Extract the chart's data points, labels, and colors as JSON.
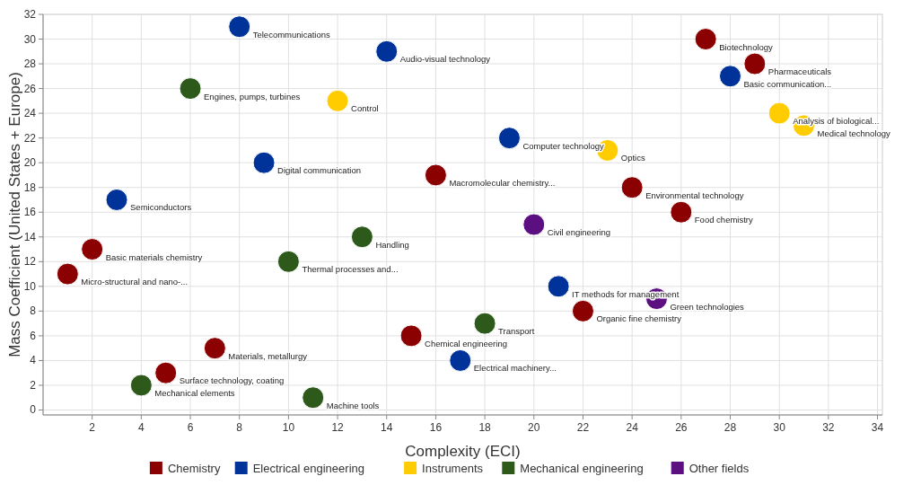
{
  "chart_data": {
    "type": "scatter",
    "xlabel": "Complexity (ECI)",
    "ylabel": "Mass Coefficient (United States + Europe)",
    "xlim": [
      0,
      34.2
    ],
    "ylim": [
      -0.4,
      32
    ],
    "xticks": [
      2,
      4,
      6,
      8,
      10,
      12,
      14,
      16,
      18,
      20,
      22,
      24,
      26,
      28,
      30,
      32,
      34
    ],
    "yticks": [
      0,
      2,
      4,
      6,
      8,
      10,
      12,
      14,
      16,
      18,
      20,
      22,
      24,
      26,
      28,
      30,
      32
    ],
    "grid": true,
    "legend": "bottom",
    "marker": "circle",
    "series": [
      {
        "name": "Chemistry",
        "color": "#8b0000",
        "x": [
          27,
          29,
          16,
          24,
          26,
          2,
          1,
          22,
          15,
          7,
          5
        ],
        "values": [
          30,
          28,
          19,
          18,
          16,
          13,
          11,
          8,
          6,
          5,
          3
        ]
      },
      {
        "name": "Electrical engineering",
        "color": "#003399",
        "x": [
          8,
          14,
          28,
          19,
          9,
          3,
          21,
          17
        ],
        "values": [
          31,
          29,
          27,
          22,
          20,
          17,
          10,
          4
        ]
      },
      {
        "name": "Instruments",
        "color": "#ffcc00",
        "x": [
          12,
          30,
          31,
          23
        ],
        "values": [
          25,
          24,
          23,
          21
        ]
      },
      {
        "name": "Mechanical engineering",
        "color": "#2d5a1b",
        "x": [
          6,
          13,
          10,
          18,
          4,
          11
        ],
        "values": [
          26,
          14,
          12,
          7,
          2,
          1
        ]
      },
      {
        "name": "Other fields",
        "color": "#5b0f80",
        "x": [
          20,
          25
        ],
        "values": [
          15,
          9
        ]
      }
    ],
    "annotations": [
      {
        "text": "Biotechnology",
        "x": 27,
        "y": 30
      },
      {
        "text": "Pharmaceuticals",
        "x": 29,
        "y": 28
      },
      {
        "text": "Macromolecular chemistry...",
        "x": 16,
        "y": 19
      },
      {
        "text": "Environmental technology",
        "x": 24,
        "y": 18
      },
      {
        "text": "Food chemistry",
        "x": 26,
        "y": 16
      },
      {
        "text": "Basic materials chemistry",
        "x": 2,
        "y": 13
      },
      {
        "text": "Micro-structural and nano-...",
        "x": 1,
        "y": 11
      },
      {
        "text": "Organic fine chemistry",
        "x": 22,
        "y": 8
      },
      {
        "text": "Chemical engineering",
        "x": 15,
        "y": 6
      },
      {
        "text": "Materials, metallurgy",
        "x": 7,
        "y": 5
      },
      {
        "text": "Surface technology, coating",
        "x": 5,
        "y": 3
      },
      {
        "text": "Telecommunications",
        "x": 8,
        "y": 31
      },
      {
        "text": "Audio-visual technology",
        "x": 14,
        "y": 29
      },
      {
        "text": "Basic communication...",
        "x": 28,
        "y": 27
      },
      {
        "text": "Computer technology",
        "x": 19,
        "y": 22
      },
      {
        "text": "Digital communication",
        "x": 9,
        "y": 20
      },
      {
        "text": "Semiconductors",
        "x": 3,
        "y": 17
      },
      {
        "text": "IT methods for management",
        "x": 21,
        "y": 10
      },
      {
        "text": "Electrical machinery...",
        "x": 17,
        "y": 4
      },
      {
        "text": "Control",
        "x": 12,
        "y": 25
      },
      {
        "text": "Analysis of biological...",
        "x": 30,
        "y": 24
      },
      {
        "text": "Medical technology",
        "x": 31,
        "y": 23
      },
      {
        "text": "Optics",
        "x": 23,
        "y": 21
      },
      {
        "text": "Engines, pumps, turbines",
        "x": 6,
        "y": 26
      },
      {
        "text": "Handling",
        "x": 13,
        "y": 14
      },
      {
        "text": "Thermal processes and...",
        "x": 10,
        "y": 12
      },
      {
        "text": "Transport",
        "x": 18,
        "y": 7
      },
      {
        "text": "Mechanical elements",
        "x": 4,
        "y": 2
      },
      {
        "text": "Machine tools",
        "x": 11,
        "y": 1
      },
      {
        "text": "Civil engineering",
        "x": 20,
        "y": 15
      },
      {
        "text": "Green technologies",
        "x": 25,
        "y": 9
      }
    ]
  }
}
